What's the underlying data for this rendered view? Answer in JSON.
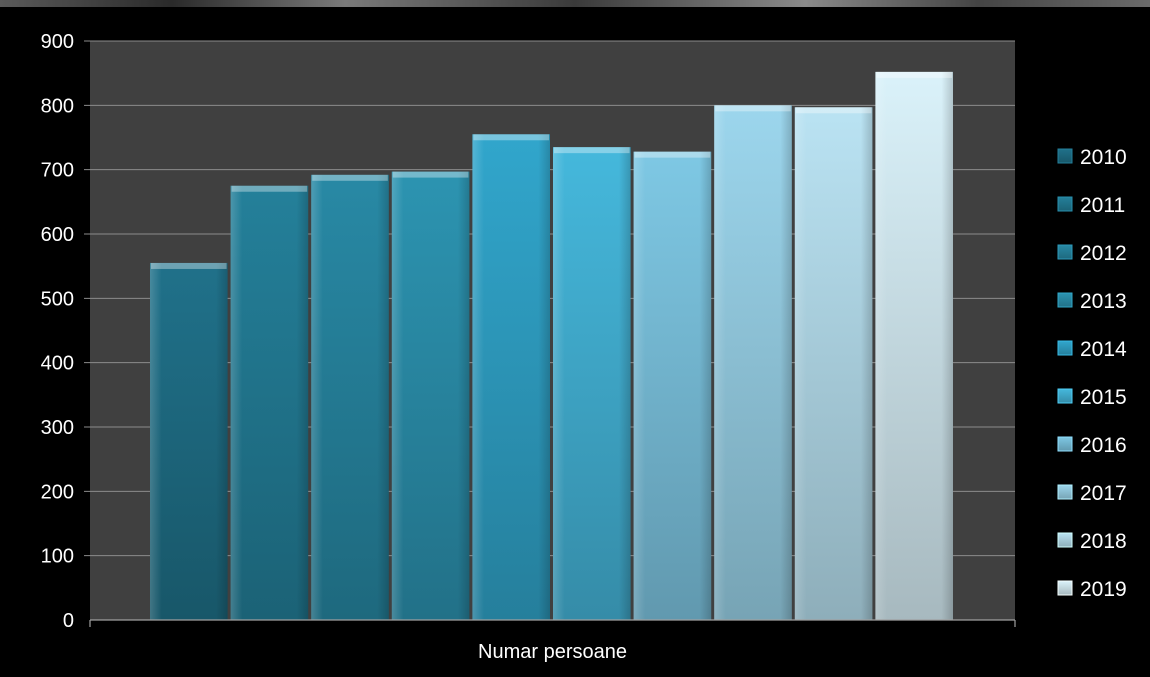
{
  "chart_data": {
    "type": "bar",
    "categories": [
      "Numar persoane"
    ],
    "xlabel": "Numar persoane",
    "ylabel": "",
    "title": "",
    "ylim": [
      0,
      900
    ],
    "yticks": [
      0,
      100,
      200,
      300,
      400,
      500,
      600,
      700,
      800,
      900
    ],
    "grid": true,
    "legend_position": "right",
    "series": [
      {
        "name": "2010",
        "values": [
          555
        ],
        "color": "#1f6f87"
      },
      {
        "name": "2011",
        "values": [
          675
        ],
        "color": "#237d97"
      },
      {
        "name": "2012",
        "values": [
          692
        ],
        "color": "#2786a2"
      },
      {
        "name": "2013",
        "values": [
          697
        ],
        "color": "#2b91ae"
      },
      {
        "name": "2014",
        "values": [
          755
        ],
        "color": "#30a3c8"
      },
      {
        "name": "2015",
        "values": [
          735
        ],
        "color": "#44b4d8"
      },
      {
        "name": "2016",
        "values": [
          728
        ],
        "color": "#7cc4e0"
      },
      {
        "name": "2017",
        "values": [
          800
        ],
        "color": "#99d2e8"
      },
      {
        "name": "2018",
        "values": [
          797
        ],
        "color": "#b6dfee"
      },
      {
        "name": "2019",
        "values": [
          852
        ],
        "color": "#d6edf5"
      }
    ]
  },
  "colors": {
    "plot_background": "#404040",
    "gridline": "#8c8c8c",
    "text": "#ffffff",
    "page_background": "#000000"
  }
}
